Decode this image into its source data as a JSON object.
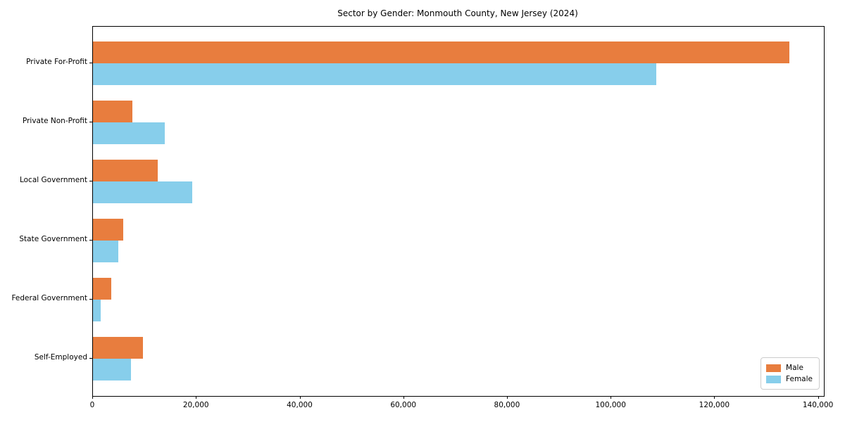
{
  "chart_data": {
    "type": "bar",
    "orientation": "horizontal",
    "grouped": true,
    "title": "Sector by Gender: Monmouth County, New Jersey (2024)",
    "categories": [
      "Private For-Profit",
      "Private Non-Profit",
      "Local Government",
      "State Government",
      "Federal Government",
      "Self-Employed"
    ],
    "series": [
      {
        "name": "Male",
        "color": "#e87d3e",
        "values": [
          134300,
          7600,
          12500,
          5800,
          3500,
          9650
        ]
      },
      {
        "name": "Female",
        "color": "#87ceeb",
        "values": [
          108700,
          13900,
          19200,
          4900,
          1500,
          7300
        ]
      }
    ],
    "xlabel": "",
    "ylabel": "",
    "xlim": [
      0,
      141000
    ],
    "x_ticks": [
      {
        "value": 0,
        "label": "0"
      },
      {
        "value": 20000,
        "label": "20,000"
      },
      {
        "value": 40000,
        "label": "40,000"
      },
      {
        "value": 60000,
        "label": "60,000"
      },
      {
        "value": 80000,
        "label": "80,000"
      },
      {
        "value": 100000,
        "label": "100,000"
      },
      {
        "value": 120000,
        "label": "120,000"
      },
      {
        "value": 140000,
        "label": "140,000"
      }
    ],
    "grid": false,
    "legend": {
      "position": "lower right"
    }
  }
}
